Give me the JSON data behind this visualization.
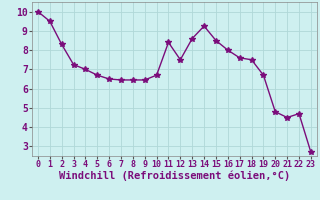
{
  "x": [
    0,
    1,
    2,
    3,
    4,
    5,
    6,
    7,
    8,
    9,
    10,
    11,
    12,
    13,
    14,
    15,
    16,
    17,
    18,
    19,
    20,
    21,
    22,
    23
  ],
  "y": [
    10.0,
    9.5,
    8.3,
    7.25,
    7.0,
    6.7,
    6.5,
    6.45,
    6.45,
    6.45,
    6.7,
    8.4,
    7.5,
    8.6,
    9.25,
    8.5,
    8.0,
    7.6,
    7.5,
    6.7,
    4.8,
    4.5,
    4.7,
    2.7
  ],
  "line_color": "#7B0D7B",
  "marker": "*",
  "marker_size": 4,
  "bg_color": "#cef0f0",
  "grid_color": "#b0d8d8",
  "xlabel": "Windchill (Refroidissement éolien,°C)",
  "xlim": [
    -0.5,
    23.5
  ],
  "ylim": [
    2.5,
    10.5
  ],
  "yticks": [
    3,
    4,
    5,
    6,
    7,
    8,
    9,
    10
  ],
  "xticks": [
    0,
    1,
    2,
    3,
    4,
    5,
    6,
    7,
    8,
    9,
    10,
    11,
    12,
    13,
    14,
    15,
    16,
    17,
    18,
    19,
    20,
    21,
    22,
    23
  ],
  "xlabel_fontsize": 7.5,
  "tick_fontsize": 7,
  "line_width": 1.0
}
